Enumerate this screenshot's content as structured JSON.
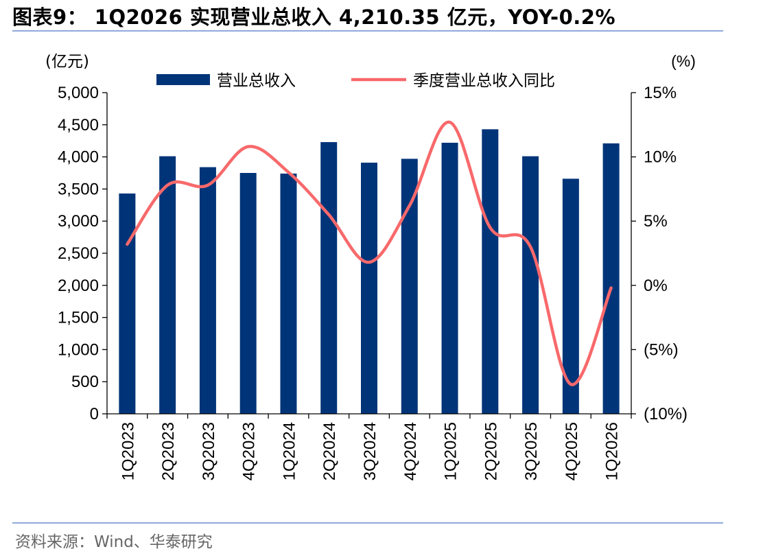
{
  "figure": {
    "title": "图表9： 1Q2026 实现营业总收入 4,210.35 亿元，YOY-0.2%",
    "source": "资料来源：Wind、华泰研究"
  },
  "chart_data": {
    "type": "bar",
    "categories": [
      "1Q2023",
      "2Q2023",
      "3Q2023",
      "4Q2023",
      "1Q2024",
      "2Q2024",
      "3Q2024",
      "4Q2024",
      "1Q2025",
      "2Q2025",
      "3Q2025",
      "4Q2025",
      "1Q2026"
    ],
    "series": [
      {
        "name": "营业总收入",
        "type": "bar",
        "axis": "left",
        "color": "#003478",
        "values": [
          3430,
          4010,
          3840,
          3750,
          3740,
          4230,
          3910,
          3970,
          4220,
          4430,
          4010,
          3660,
          4210.35
        ]
      },
      {
        "name": "季度营业总收入同比",
        "type": "line",
        "axis": "right",
        "color": "#f8696b",
        "values": [
          3.2,
          7.8,
          7.8,
          10.8,
          8.8,
          5.5,
          1.8,
          6.2,
          12.7,
          4.5,
          3.0,
          -7.7,
          -0.2
        ]
      }
    ],
    "y_left": {
      "unit": "(亿元)",
      "min": 0,
      "max": 5000,
      "step": 500,
      "ticks": [
        "0",
        "500",
        "1,000",
        "1,500",
        "2,000",
        "2,500",
        "3,000",
        "3,500",
        "4,000",
        "4,500",
        "5,000"
      ]
    },
    "y_right": {
      "unit": "(%)",
      "min": -10,
      "max": 15,
      "step": 5,
      "ticks": [
        "(10%)",
        "(5%)",
        "0%",
        "5%",
        "10%",
        "15%"
      ]
    },
    "legend_position": "top",
    "grid": false
  }
}
